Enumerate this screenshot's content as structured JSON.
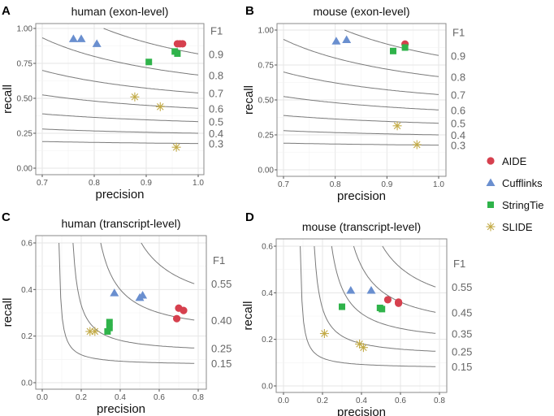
{
  "colors": {
    "AIDE": "#d6404e",
    "Cufflinks": "#6a8fcf",
    "StringTie": "#2fb34a",
    "SLIDE": "#c2aa45",
    "curve": "#7a7a7a"
  },
  "legend": [
    {
      "name": "AIDE",
      "shape": "circle"
    },
    {
      "name": "Cufflinks",
      "shape": "triangle"
    },
    {
      "name": "StringTie",
      "shape": "square"
    },
    {
      "name": "SLIDE",
      "shape": "asterisk"
    }
  ],
  "chart_data": [
    {
      "panel": "A",
      "type": "scatter",
      "title": "human (exon-level)",
      "xlabel": "precision",
      "ylabel": "recall",
      "xlim": [
        0.7,
        1.0
      ],
      "ylim": [
        0.0,
        1.0
      ],
      "xticks": [
        "0.7",
        "0.8",
        "0.9",
        "1.0"
      ],
      "yticks": [
        "0.00",
        "0.25",
        "0.50",
        "0.75",
        "1.00"
      ],
      "grid": true,
      "f1_title": "F1",
      "f1_curves": [
        "0.9",
        "0.8",
        "0.7",
        "0.6",
        "0.5",
        "0.4",
        "0.3"
      ],
      "series": [
        {
          "name": "AIDE",
          "points": [
            [
              0.96,
              0.89
            ],
            [
              0.965,
              0.89
            ],
            [
              0.97,
              0.89
            ]
          ]
        },
        {
          "name": "Cufflinks",
          "points": [
            [
              0.76,
              0.925
            ],
            [
              0.775,
              0.925
            ],
            [
              0.805,
              0.89
            ]
          ]
        },
        {
          "name": "StringTie",
          "points": [
            [
              0.905,
              0.76
            ],
            [
              0.955,
              0.835
            ],
            [
              0.96,
              0.82
            ]
          ]
        },
        {
          "name": "SLIDE",
          "points": [
            [
              0.878,
              0.51
            ],
            [
              0.927,
              0.44
            ],
            [
              0.958,
              0.15
            ]
          ]
        }
      ]
    },
    {
      "panel": "B",
      "type": "scatter",
      "title": "mouse (exon-level)",
      "xlabel": "precision",
      "ylabel": "recall",
      "xlim": [
        0.7,
        1.0
      ],
      "ylim": [
        0.0,
        1.0
      ],
      "xticks": [
        "0.7",
        "0.8",
        "0.9",
        "1.0"
      ],
      "yticks": [
        "0.00",
        "0.25",
        "0.50",
        "0.75",
        "1.00"
      ],
      "grid": true,
      "f1_title": "F1",
      "f1_curves": [
        "0.9",
        "0.8",
        "0.7",
        "0.6",
        "0.5",
        "0.4",
        "0.3"
      ],
      "series": [
        {
          "name": "AIDE",
          "points": [
            [
              0.935,
              0.9
            ]
          ]
        },
        {
          "name": "Cufflinks",
          "points": [
            [
              0.802,
              0.92
            ],
            [
              0.822,
              0.93
            ]
          ]
        },
        {
          "name": "StringTie",
          "points": [
            [
              0.912,
              0.85
            ],
            [
              0.935,
              0.875
            ]
          ]
        },
        {
          "name": "SLIDE",
          "points": [
            [
              0.92,
              0.315
            ],
            [
              0.958,
              0.18
            ]
          ]
        }
      ]
    },
    {
      "panel": "C",
      "type": "scatter",
      "title": "human (transcript-level)",
      "xlabel": "precision",
      "ylabel": "recall",
      "xlim": [
        0.0,
        0.8
      ],
      "ylim": [
        0.0,
        0.6
      ],
      "xticks": [
        "0.0",
        "0.2",
        "0.4",
        "0.6",
        "0.8"
      ],
      "yticks": [
        "0.0",
        "0.2",
        "0.4",
        "0.6"
      ],
      "grid": true,
      "f1_title": "F1",
      "f1_curves": [
        "0.55",
        "0.40",
        "0.25",
        "0.15"
      ],
      "series": [
        {
          "name": "AIDE",
          "points": [
            [
              0.7,
              0.32
            ],
            [
              0.725,
              0.31
            ],
            [
              0.69,
              0.275
            ]
          ]
        },
        {
          "name": "Cufflinks",
          "points": [
            [
              0.37,
              0.385
            ],
            [
              0.5,
              0.365
            ],
            [
              0.515,
              0.375
            ]
          ]
        },
        {
          "name": "StringTie",
          "points": [
            [
              0.345,
              0.26
            ],
            [
              0.345,
              0.235
            ],
            [
              0.335,
              0.22
            ]
          ]
        },
        {
          "name": "SLIDE",
          "points": [
            [
              0.245,
              0.22
            ],
            [
              0.27,
              0.22
            ]
          ]
        }
      ]
    },
    {
      "panel": "D",
      "type": "scatter",
      "title": "mouse (transcript-level)",
      "xlabel": "precision",
      "ylabel": "recall",
      "xlim": [
        0.0,
        0.8
      ],
      "ylim": [
        0.0,
        0.6
      ],
      "xticks": [
        "0.0",
        "0.2",
        "0.4",
        "0.6",
        "0.8"
      ],
      "yticks": [
        "0.0",
        "0.2",
        "0.4",
        "0.6"
      ],
      "grid": true,
      "f1_title": "F1",
      "f1_curves": [
        "0.55",
        "0.45",
        "0.35",
        "0.25",
        "0.15"
      ],
      "series": [
        {
          "name": "AIDE",
          "points": [
            [
              0.535,
              0.37
            ],
            [
              0.59,
              0.36
            ],
            [
              0.59,
              0.355
            ]
          ]
        },
        {
          "name": "Cufflinks",
          "points": [
            [
              0.345,
              0.41
            ],
            [
              0.45,
              0.41
            ]
          ]
        },
        {
          "name": "StringTie",
          "points": [
            [
              0.3,
              0.34
            ],
            [
              0.495,
              0.335
            ],
            [
              0.505,
              0.33
            ]
          ]
        },
        {
          "name": "SLIDE",
          "points": [
            [
              0.21,
              0.225
            ],
            [
              0.39,
              0.18
            ],
            [
              0.41,
              0.165
            ]
          ]
        }
      ]
    }
  ]
}
